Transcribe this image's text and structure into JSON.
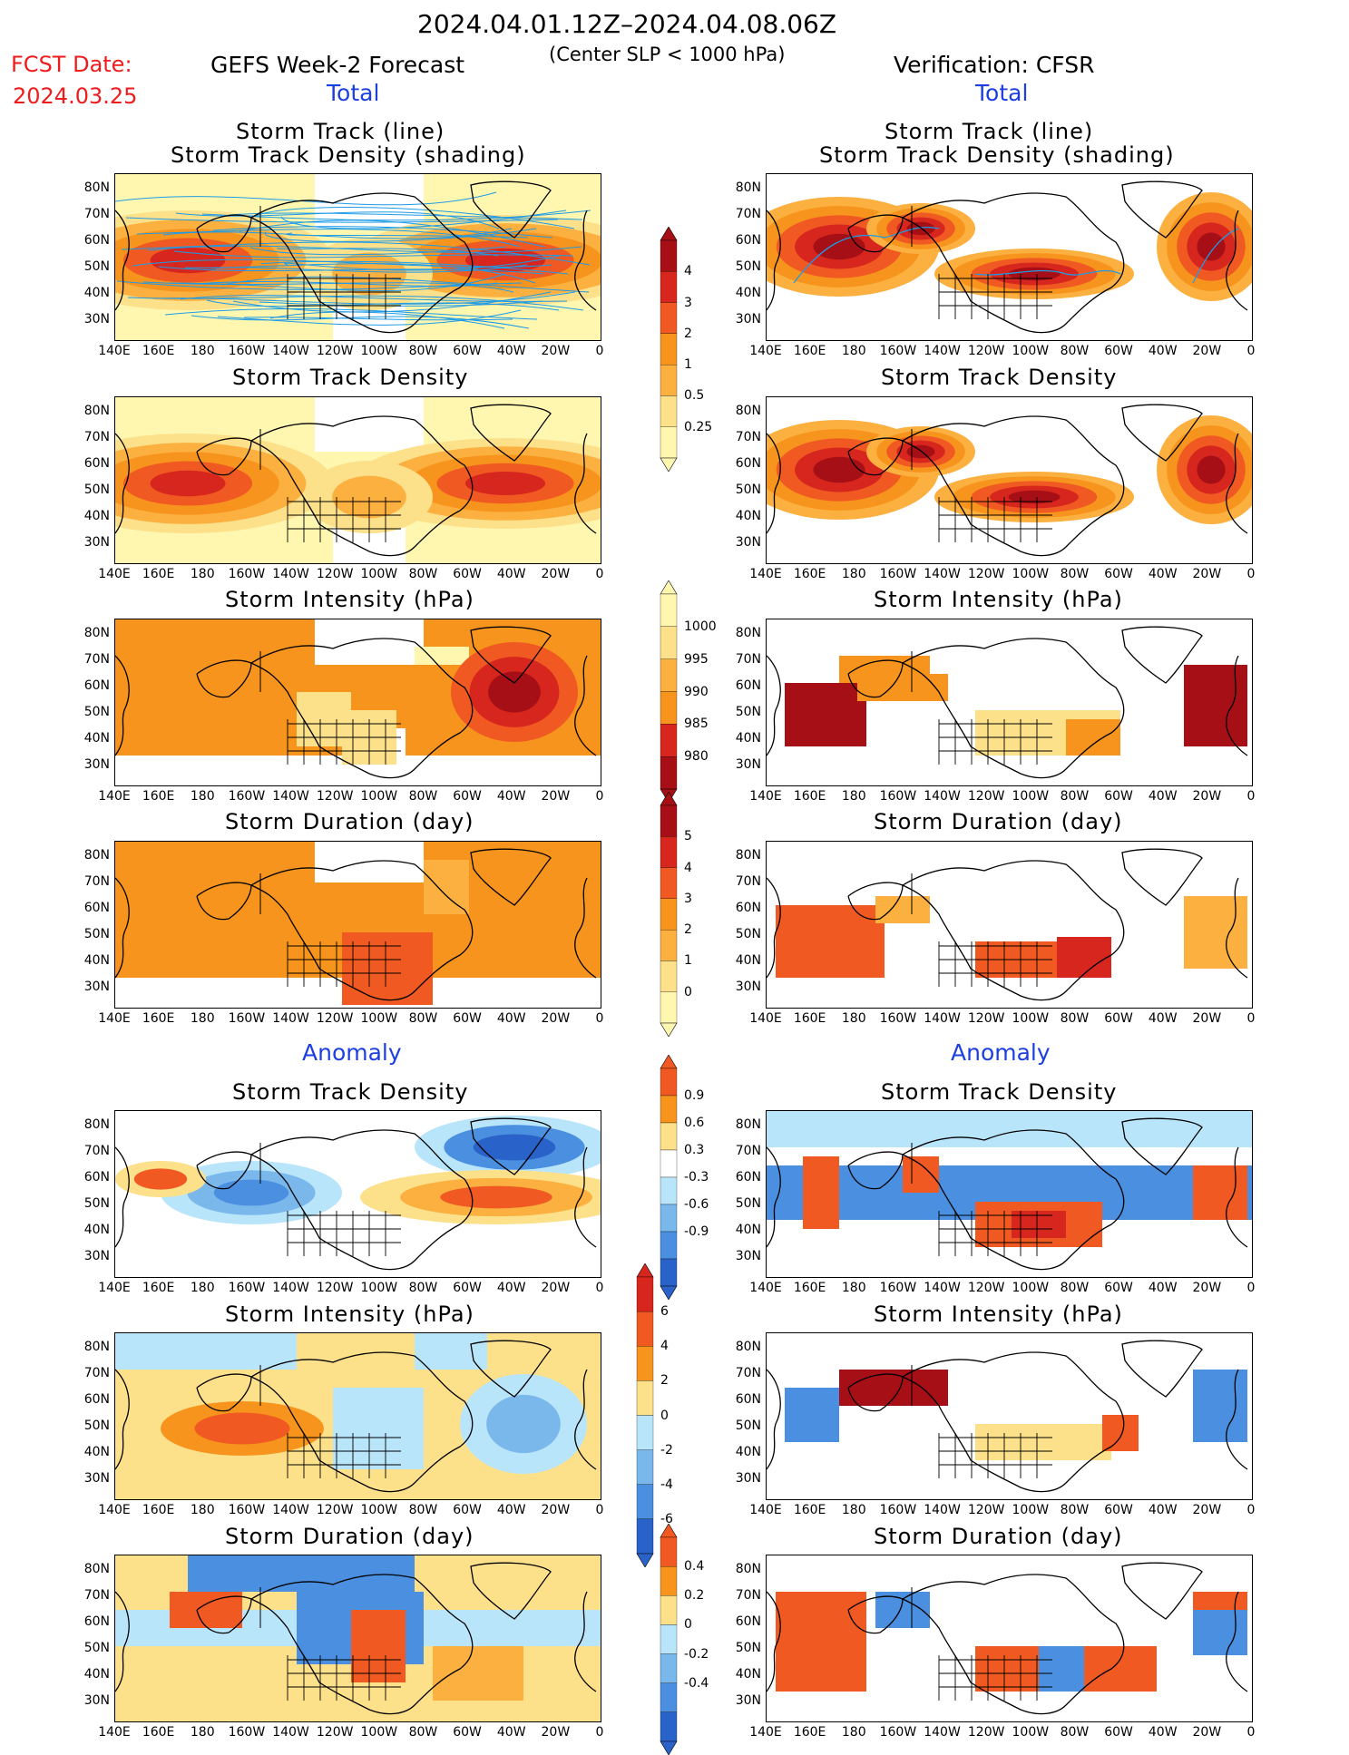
{
  "header": {
    "date_range": "2024.04.01.12Z–2024.04.08.06Z",
    "subtitle": "(Center SLP < 1000 hPa)",
    "fcst_label": "FCST Date:",
    "fcst_date": "2024.03.25",
    "left_title": "GEFS Week-2 Forecast",
    "right_title": "Verification: CFSR",
    "total_label": "Total",
    "anomaly_label": "Anomaly"
  },
  "panel_titles": {
    "track_line": "Storm Track (line)",
    "track_density_shading": "Storm Track Density (shading)",
    "density": "Storm Track Density",
    "intensity": "Storm Intensity (hPa)",
    "duration": "Storm Duration (day)"
  },
  "axes": {
    "lat_labels": [
      "80N",
      "70N",
      "60N",
      "50N",
      "40N",
      "30N"
    ],
    "lon_labels": [
      "140E",
      "160E",
      "180",
      "160W",
      "140W",
      "120W",
      "100W",
      "80W",
      "60W",
      "40W",
      "20W",
      "0"
    ]
  },
  "colorbars": {
    "density_total": [
      "4",
      "3",
      "2",
      "1",
      "0.5",
      "0.25"
    ],
    "intensity_total": [
      "1000",
      "995",
      "990",
      "985",
      "980"
    ],
    "duration_total": [
      "5",
      "4",
      "3",
      "2",
      "1",
      "0"
    ],
    "density_anom": [
      "0.9",
      "0.6",
      "0.3",
      "-0.3",
      "-0.6",
      "-0.9"
    ],
    "intensity_anom": [
      "6",
      "4",
      "2",
      "0",
      "-2",
      "-4",
      "-6"
    ],
    "duration_anom": [
      "0.4",
      "0.2",
      "0",
      "-0.2",
      "-0.4"
    ]
  },
  "colors": {
    "yellow_light": "#fff7b0",
    "yellow": "#fde08a",
    "orange_light": "#fbb040",
    "orange": "#f7941d",
    "orange_red": "#f05a22",
    "red": "#d7261e",
    "dark_red": "#a50f15",
    "blue_light": "#b9e5fb",
    "blue": "#7ab8ec",
    "blue_mid": "#4a8fe0",
    "blue_dark": "#2962c9",
    "track_line": "#1e9be6",
    "map_line": "#000000"
  }
}
